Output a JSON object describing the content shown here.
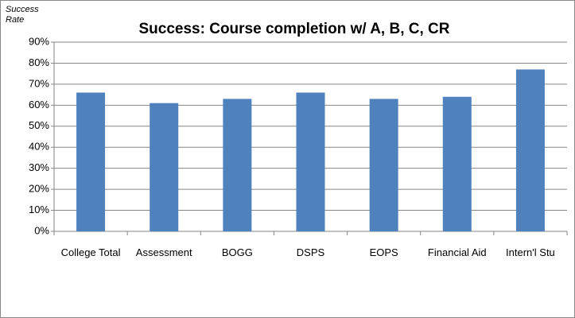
{
  "chart_data": {
    "type": "bar",
    "title": "Success:  Course completion w/ A, B, C, CR",
    "y_label": "Success Rate",
    "categories": [
      "College Total",
      "Assessment",
      "BOGG",
      "DSPS",
      "EOPS",
      "Financial Aid",
      "Intern'l Stu"
    ],
    "values": [
      66,
      61,
      63,
      66,
      63,
      64,
      77
    ],
    "color": "#4f81bd",
    "ylim": [
      0,
      90
    ],
    "yticks": [
      {
        "value": 0,
        "label": "0%"
      },
      {
        "value": 10,
        "label": "10%"
      },
      {
        "value": 20,
        "label": "20%"
      },
      {
        "value": 30,
        "label": "30%"
      },
      {
        "value": 40,
        "label": "40%"
      },
      {
        "value": 50,
        "label": "50%"
      },
      {
        "value": 60,
        "label": "60%"
      },
      {
        "value": 70,
        "label": "70%"
      },
      {
        "value": 80,
        "label": "80%"
      },
      {
        "value": 90,
        "label": "90%"
      }
    ],
    "grid": true
  }
}
